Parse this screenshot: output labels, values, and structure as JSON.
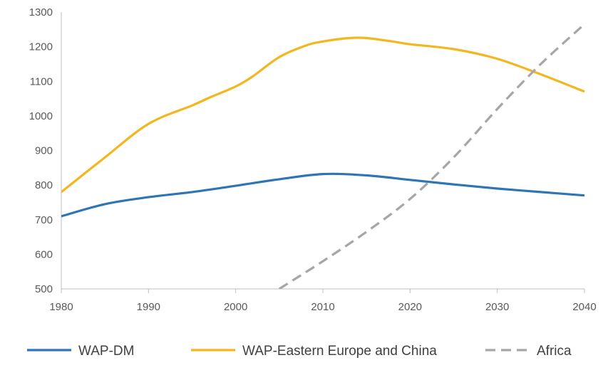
{
  "chart_data": {
    "type": "line",
    "title": "",
    "xlabel": "",
    "ylabel": "",
    "xlim": [
      1980,
      2040
    ],
    "ylim": [
      500,
      1300
    ],
    "x_ticks": [
      "1980",
      "1990",
      "2000",
      "2010",
      "2020",
      "2030",
      "2040"
    ],
    "y_ticks": [
      "500",
      "600",
      "700",
      "800",
      "900",
      "1000",
      "1100",
      "1200",
      "1300"
    ],
    "grid": false,
    "legend_position": "bottom",
    "series": [
      {
        "name": "WAP-DM",
        "color": "#2e75b6",
        "dash": "solid",
        "x": [
          1980,
          1985,
          1990,
          1995,
          2000,
          2005,
          2010,
          2015,
          2020,
          2025,
          2030,
          2035,
          2040
        ],
        "values": [
          710,
          745,
          765,
          780,
          798,
          817,
          832,
          828,
          815,
          802,
          790,
          780,
          770
        ]
      },
      {
        "name": "WAP-Eastern Europe and China",
        "color": "#f2b61f",
        "dash": "solid",
        "x": [
          1980,
          1985,
          1990,
          1995,
          1997,
          2000,
          2002,
          2005,
          2008,
          2010,
          2013,
          2015,
          2018,
          2020,
          2025,
          2030,
          2035,
          2040
        ],
        "values": [
          780,
          880,
          977,
          1030,
          1053,
          1085,
          1115,
          1170,
          1203,
          1215,
          1225,
          1225,
          1215,
          1207,
          1193,
          1165,
          1120,
          1070
        ]
      },
      {
        "name": "Africa",
        "color": "#a6a6a6",
        "dash": "dashed",
        "x": [
          2005,
          2010,
          2015,
          2020,
          2025,
          2030,
          2035,
          2040
        ],
        "values": [
          500,
          580,
          665,
          760,
          880,
          1020,
          1150,
          1265
        ]
      }
    ]
  }
}
